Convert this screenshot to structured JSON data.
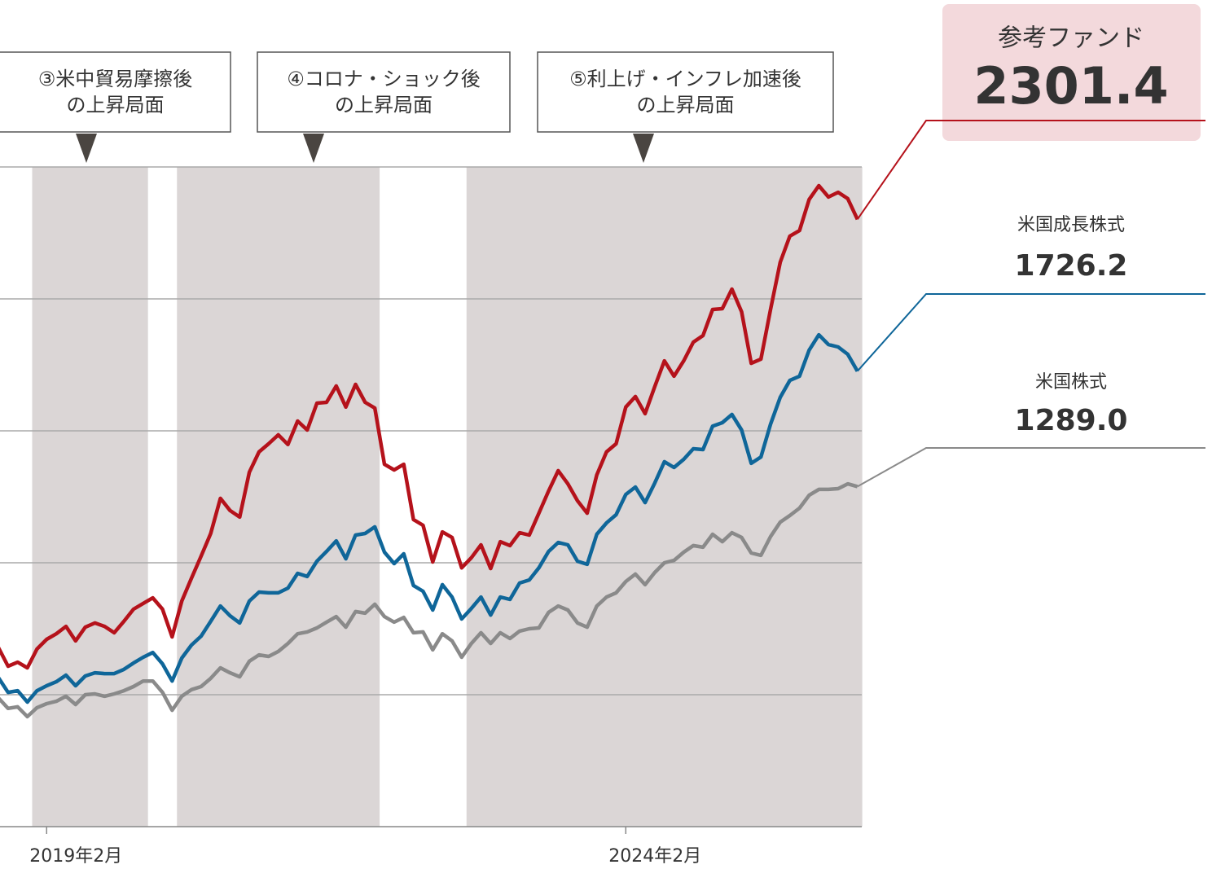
{
  "chart_data": {
    "type": "line",
    "x": [
      "2018-09",
      "2018-10",
      "2018-11",
      "2018-12",
      "2019-01",
      "2019-02",
      "2019-03",
      "2019-04",
      "2019-05",
      "2019-06",
      "2019-07",
      "2019-08",
      "2019-09",
      "2019-10",
      "2019-11",
      "2019-12",
      "2020-01",
      "2020-02",
      "2020-03",
      "2020-04",
      "2020-05",
      "2020-06",
      "2020-07",
      "2020-08",
      "2020-09",
      "2020-10",
      "2020-11",
      "2020-12",
      "2021-01",
      "2021-02",
      "2021-03",
      "2021-04",
      "2021-05",
      "2021-06",
      "2021-07",
      "2021-08",
      "2021-09",
      "2021-10",
      "2021-11",
      "2021-12",
      "2022-01",
      "2022-02",
      "2022-03",
      "2022-04",
      "2022-05",
      "2022-06",
      "2022-07",
      "2022-08",
      "2022-09",
      "2022-10",
      "2022-11",
      "2022-12",
      "2023-01",
      "2023-02",
      "2023-03",
      "2023-04",
      "2023-05",
      "2023-06",
      "2023-07",
      "2023-08",
      "2023-09",
      "2023-10",
      "2023-11",
      "2023-12",
      "2024-01",
      "2024-02",
      "2024-03",
      "2024-04",
      "2024-05",
      "2024-06",
      "2024-07",
      "2024-08",
      "2024-09",
      "2024-10",
      "2024-11",
      "2024-12",
      "2025-01",
      "2025-02",
      "2025-03",
      "2025-04",
      "2025-05",
      "2025-06",
      "2025-07",
      "2025-08",
      "2025-09",
      "2025-10",
      "2025-11",
      "2025-12",
      "2026-01",
      "2026-02"
    ],
    "xlim": [
      "2018-09",
      "2026-02"
    ],
    "xticks": [
      {
        "value": "2019-02",
        "label": "2019年2月"
      },
      {
        "value": "2024-02",
        "label": "2024年2月"
      }
    ],
    "ylim": [
      0,
      2500
    ],
    "yticks": [
      0,
      500,
      1000,
      1500,
      2000,
      2500
    ],
    "grid": true,
    "series": [
      {
        "name": "参考ファンド",
        "color": "#b5121b",
        "values": [
          679,
          608,
          623,
          602,
          673,
          710,
          731,
          759,
          704,
          756,
          772,
          759,
          735,
          778,
          824,
          846,
          867,
          824,
          719,
          855,
          941,
          1025,
          1111,
          1244,
          1198,
          1173,
          1343,
          1420,
          1451,
          1485,
          1448,
          1537,
          1503,
          1605,
          1608,
          1670,
          1590,
          1676,
          1608,
          1586,
          1373,
          1352,
          1373,
          1164,
          1142,
          1003,
          1117,
          1096,
          981,
          1019,
          1068,
          978,
          1080,
          1065,
          1114,
          1105,
          1188,
          1272,
          1349,
          1299,
          1235,
          1188,
          1333,
          1420,
          1451,
          1590,
          1630,
          1565,
          1667,
          1765,
          1707,
          1765,
          1836,
          1861,
          1960,
          1963,
          2037,
          1951,
          1756,
          1772,
          1960,
          2139,
          2238,
          2259,
          2377,
          2429,
          2386,
          2404,
          2380,
          2301.4
        ],
        "value_labels": [
          null,
          null,
          null,
          null,
          null,
          null,
          null,
          null,
          null,
          null,
          null,
          null,
          null,
          null,
          null,
          null,
          null,
          null,
          null,
          null,
          null,
          null,
          null,
          null,
          null,
          null,
          null,
          null,
          null,
          null,
          null,
          null,
          null,
          null,
          null,
          null,
          null,
          null,
          null,
          null,
          null,
          null,
          null,
          null,
          null,
          null,
          null,
          null,
          null,
          null,
          null,
          null,
          null,
          null,
          null,
          null,
          null,
          null,
          null,
          null,
          null,
          null,
          null,
          null,
          null,
          null,
          null,
          null,
          null,
          null,
          null,
          null,
          null,
          null,
          null,
          null,
          null,
          null,
          null,
          null,
          null,
          null,
          null,
          null,
          null,
          null,
          null,
          null,
          null,
          "2301.4"
        ]
      },
      {
        "name": "米国成長株式",
        "color": "#0f6699",
        "values": [
          565,
          509,
          515,
          472,
          515,
          534,
          549,
          574,
          534,
          571,
          583,
          580,
          580,
          596,
          620,
          642,
          660,
          617,
          552,
          639,
          688,
          722,
          778,
          836,
          799,
          772,
          855,
          889,
          886,
          886,
          904,
          960,
          948,
          1006,
          1043,
          1083,
          1015,
          1105,
          1111,
          1136,
          1040,
          997,
          1034,
          914,
          892,
          821,
          917,
          870,
          787,
          827,
          870,
          802,
          870,
          861,
          923,
          935,
          981,
          1043,
          1077,
          1068,
          1006,
          994,
          1108,
          1151,
          1182,
          1259,
          1287,
          1228,
          1302,
          1383,
          1361,
          1392,
          1432,
          1429,
          1518,
          1531,
          1562,
          1503,
          1377,
          1401,
          1525,
          1627,
          1691,
          1707,
          1806,
          1864,
          1827,
          1818,
          1790,
          1726.2
        ],
        "value_labels": [
          null,
          null,
          null,
          null,
          null,
          null,
          null,
          null,
          null,
          null,
          null,
          null,
          null,
          null,
          null,
          null,
          null,
          null,
          null,
          null,
          null,
          null,
          null,
          null,
          null,
          null,
          null,
          null,
          null,
          null,
          null,
          null,
          null,
          null,
          null,
          null,
          null,
          null,
          null,
          null,
          null,
          null,
          null,
          null,
          null,
          null,
          null,
          null,
          null,
          null,
          null,
          null,
          null,
          null,
          null,
          null,
          null,
          null,
          null,
          null,
          null,
          null,
          null,
          null,
          null,
          null,
          null,
          null,
          null,
          null,
          null,
          null,
          null,
          null,
          null,
          null,
          null,
          null,
          null,
          null,
          null,
          null,
          null,
          null,
          null,
          null,
          null,
          null,
          null,
          "1726.2"
        ]
      },
      {
        "name": "米国株式",
        "color": "#8a8a8a",
        "values": [
          488,
          448,
          454,
          417,
          451,
          466,
          475,
          494,
          463,
          500,
          503,
          494,
          503,
          515,
          531,
          552,
          552,
          509,
          441,
          494,
          519,
          531,
          562,
          602,
          583,
          568,
          627,
          651,
          645,
          664,
          694,
          731,
          738,
          753,
          775,
          796,
          756,
          815,
          809,
          843,
          796,
          775,
          793,
          735,
          738,
          670,
          731,
          704,
          642,
          694,
          735,
          694,
          735,
          713,
          741,
          750,
          753,
          812,
          836,
          821,
          772,
          756,
          836,
          870,
          886,
          929,
          957,
          917,
          963,
          1000,
          1009,
          1040,
          1065,
          1059,
          1108,
          1080,
          1114,
          1096,
          1037,
          1028,
          1099,
          1154,
          1179,
          1207,
          1256,
          1278,
          1278,
          1281,
          1299,
          1289.0
        ],
        "value_labels": [
          null,
          null,
          null,
          null,
          null,
          null,
          null,
          null,
          null,
          null,
          null,
          null,
          null,
          null,
          null,
          null,
          null,
          null,
          null,
          null,
          null,
          null,
          null,
          null,
          null,
          null,
          null,
          null,
          null,
          null,
          null,
          null,
          null,
          null,
          null,
          null,
          null,
          null,
          null,
          null,
          null,
          null,
          null,
          null,
          null,
          null,
          null,
          null,
          null,
          null,
          null,
          null,
          null,
          null,
          null,
          null,
          null,
          null,
          null,
          null,
          null,
          null,
          null,
          null,
          null,
          null,
          null,
          null,
          null,
          null,
          null,
          null,
          null,
          null,
          null,
          null,
          null,
          null,
          null,
          null,
          null,
          null,
          null,
          null,
          null,
          null,
          null,
          null,
          null,
          "1289.0"
        ]
      }
    ],
    "annotations": [
      {
        "text": [
          "③米中貿易摩擦後",
          "の上昇局面"
        ],
        "start": "2019-01",
        "end": "2019-12"
      },
      {
        "text": [
          "④コロナ・ショック後",
          "の上昇局面"
        ],
        "start": "2020-04",
        "end": "2021-12"
      },
      {
        "text": [
          "⑤利上げ・インフレ加速後",
          "の上昇局面"
        ],
        "start": "2022-10",
        "end": "2026-02"
      }
    ]
  }
}
